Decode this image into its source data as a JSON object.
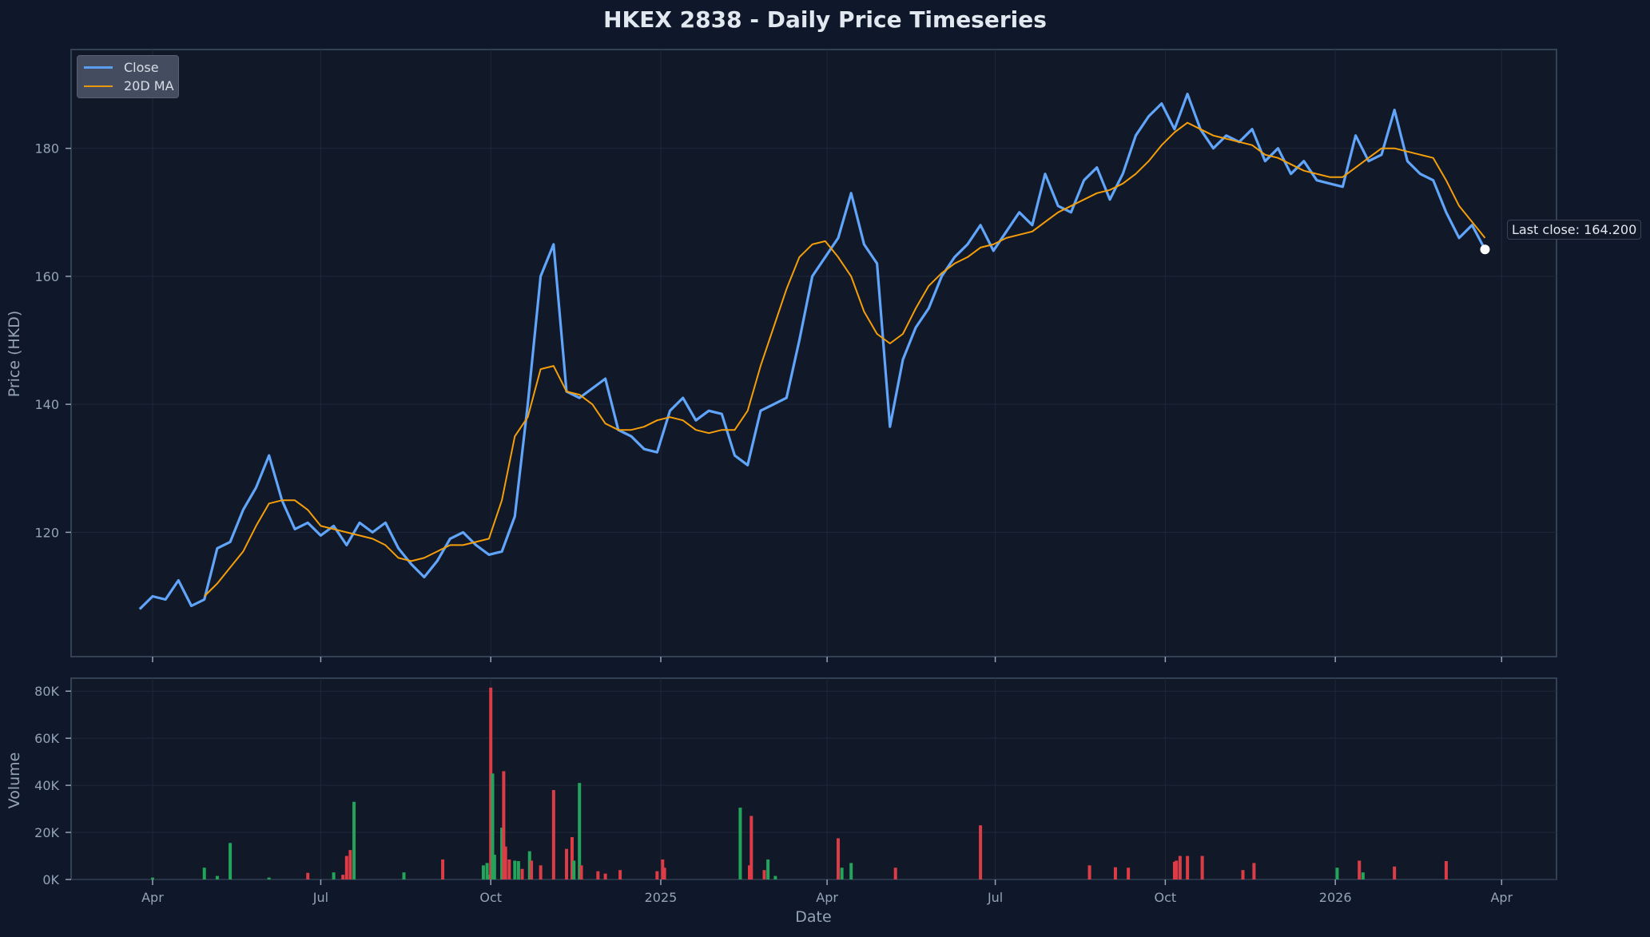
{
  "title": "HKEX 2838 - Daily Price Timeseries",
  "colors": {
    "background": "#0f172a",
    "plot_bg": "#111827",
    "close": "#60a5fa",
    "ma": "#f59e0b",
    "vol_up": "#22a55a",
    "vol_down": "#dc3c46",
    "grid": "#1e293b",
    "spine": "#334155",
    "text": "#94a3b8"
  },
  "legend": {
    "close_label": "Close",
    "ma_label": "20D MA"
  },
  "annotation": {
    "label": "Last close: 164.200"
  },
  "price_axis": {
    "label": "Price (HKD)",
    "ticks": [
      "120",
      "140",
      "160",
      "180"
    ]
  },
  "volume_axis": {
    "label": "Volume",
    "ticks": [
      "0K",
      "20K",
      "40K",
      "60K",
      "80K"
    ]
  },
  "x_axis": {
    "label": "Date",
    "ticks": [
      "Apr",
      "Jul",
      "Oct",
      "2025",
      "Apr",
      "Jul",
      "Oct",
      "2026",
      "Apr"
    ]
  },
  "chart_data": [
    {
      "type": "line",
      "title": "HKEX 2838 - Daily Price Timeseries",
      "xlabel": "Date",
      "ylabel": "Price (HKD)",
      "ylim": [
        100.6,
        195.4
      ],
      "grid": true,
      "legend_position": "upper left",
      "x_ticks": [
        "Apr 2024",
        "Jul 2024",
        "Oct 2024",
        "2025",
        "Apr 2025",
        "Jul 2025",
        "Oct 2025",
        "2026",
        "Apr 2026"
      ],
      "x": [
        "2024-03-25",
        "2024-04-01",
        "2024-04-08",
        "2024-04-15",
        "2024-04-22",
        "2024-04-29",
        "2024-05-06",
        "2024-05-13",
        "2024-05-20",
        "2024-05-27",
        "2024-06-03",
        "2024-06-10",
        "2024-06-17",
        "2024-06-24",
        "2024-07-01",
        "2024-07-08",
        "2024-07-15",
        "2024-07-22",
        "2024-07-29",
        "2024-08-05",
        "2024-08-12",
        "2024-08-19",
        "2024-08-26",
        "2024-09-02",
        "2024-09-09",
        "2024-09-16",
        "2024-09-23",
        "2024-09-30",
        "2024-10-07",
        "2024-10-14",
        "2024-10-21",
        "2024-10-28",
        "2024-11-04",
        "2024-11-11",
        "2024-11-18",
        "2024-11-25",
        "2024-12-02",
        "2024-12-09",
        "2024-12-16",
        "2024-12-23",
        "2024-12-30",
        "2025-01-06",
        "2025-01-13",
        "2025-01-20",
        "2025-01-27",
        "2025-02-03",
        "2025-02-10",
        "2025-02-17",
        "2025-02-24",
        "2025-03-03",
        "2025-03-10",
        "2025-03-17",
        "2025-03-24",
        "2025-03-31",
        "2025-04-07",
        "2025-04-14",
        "2025-04-21",
        "2025-04-28",
        "2025-05-05",
        "2025-05-12",
        "2025-05-19",
        "2025-05-26",
        "2025-06-02",
        "2025-06-09",
        "2025-06-16",
        "2025-06-23",
        "2025-06-30",
        "2025-07-07",
        "2025-07-14",
        "2025-07-21",
        "2025-07-28",
        "2025-08-04",
        "2025-08-11",
        "2025-08-18",
        "2025-08-25",
        "2025-09-01",
        "2025-09-08",
        "2025-09-15",
        "2025-09-22",
        "2025-09-29",
        "2025-10-06",
        "2025-10-13",
        "2025-10-20",
        "2025-10-27",
        "2025-11-03",
        "2025-11-10",
        "2025-11-17",
        "2025-11-24",
        "2025-12-01",
        "2025-12-08",
        "2025-12-15",
        "2025-12-22",
        "2025-12-29",
        "2026-01-05",
        "2026-01-12",
        "2026-01-19",
        "2026-01-26",
        "2026-02-02",
        "2026-02-09",
        "2026-02-16",
        "2026-02-23",
        "2026-03-02",
        "2026-03-09",
        "2026-03-16",
        "2026-03-23"
      ],
      "series": [
        {
          "name": "Close",
          "values": [
            108.0,
            110.0,
            109.5,
            112.5,
            108.5,
            109.5,
            117.5,
            118.5,
            123.5,
            127.0,
            132.0,
            125.0,
            120.5,
            121.5,
            119.5,
            121.0,
            118.0,
            121.5,
            120.0,
            121.5,
            117.5,
            115.0,
            113.0,
            115.5,
            119.0,
            120.0,
            118.0,
            116.5,
            117.0,
            122.5,
            140.0,
            160.0,
            165.0,
            142.0,
            141.0,
            142.5,
            144.0,
            136.0,
            135.0,
            133.0,
            132.5,
            139.0,
            141.0,
            137.5,
            139.0,
            138.5,
            132.0,
            130.5,
            139.0,
            140.0,
            141.0,
            150.0,
            160.0,
            163.0,
            166.0,
            173.0,
            165.0,
            162.0,
            136.5,
            147.0,
            152.0,
            155.0,
            160.0,
            163.0,
            165.0,
            168.0,
            164.0,
            167.0,
            170.0,
            168.0,
            176.0,
            171.0,
            170.0,
            175.0,
            177.0,
            172.0,
            176.0,
            182.0,
            185.0,
            187.0,
            183.0,
            188.5,
            183.0,
            180.0,
            182.0,
            181.0,
            183.0,
            178.0,
            180.0,
            176.0,
            178.0,
            175.0,
            174.5,
            174.0,
            182.0,
            178.0,
            179.0,
            186.0,
            178.0,
            176.0,
            175.0,
            170.0,
            166.0,
            168.0,
            164.2
          ]
        },
        {
          "name": "20D MA",
          "values": [
            null,
            null,
            null,
            null,
            null,
            110.0,
            112.0,
            114.5,
            117.0,
            121.0,
            124.5,
            125.0,
            125.0,
            123.5,
            121.0,
            120.5,
            120.0,
            119.5,
            119.0,
            118.0,
            116.0,
            115.5,
            116.0,
            117.0,
            118.0,
            118.0,
            118.5,
            119.0,
            125.0,
            135.0,
            138.0,
            145.5,
            146.0,
            142.0,
            141.5,
            140.0,
            137.0,
            136.0,
            136.0,
            136.5,
            137.5,
            138.0,
            137.5,
            136.0,
            135.5,
            136.0,
            136.0,
            139.0,
            146.0,
            152.0,
            158.0,
            163.0,
            165.0,
            165.5,
            163.0,
            160.0,
            154.5,
            151.0,
            149.5,
            151.0,
            155.0,
            158.5,
            160.5,
            162.0,
            163.0,
            164.5,
            165.0,
            166.0,
            166.5,
            167.0,
            168.5,
            170.0,
            171.0,
            172.0,
            173.0,
            173.5,
            174.5,
            176.0,
            178.0,
            180.5,
            182.5,
            184.0,
            183.0,
            182.0,
            181.5,
            181.0,
            180.5,
            179.0,
            178.5,
            177.5,
            176.5,
            176.0,
            175.5,
            175.5,
            177.0,
            178.5,
            180.0,
            180.0,
            179.5,
            179.0,
            178.5,
            175.0,
            171.0,
            168.5,
            166.0
          ]
        }
      ],
      "annotations": [
        {
          "text": "Last close: 164.200",
          "x": "2026-03-23",
          "y": 164.2
        }
      ]
    },
    {
      "type": "bar",
      "title": "",
      "xlabel": "Date",
      "ylabel": "Volume",
      "ylim": [
        0,
        85000
      ],
      "grid": true,
      "x": [
        "2024-04-01",
        "2024-04-29",
        "2024-05-06",
        "2024-05-13",
        "2024-06-03",
        "2024-06-24",
        "2024-07-08",
        "2024-07-13",
        "2024-07-15",
        "2024-07-17",
        "2024-07-19",
        "2024-08-15",
        "2024-09-05",
        "2024-09-27",
        "2024-09-29",
        "2024-09-30",
        "2024-10-01",
        "2024-10-02",
        "2024-10-03",
        "2024-10-07",
        "2024-10-08",
        "2024-10-09",
        "2024-10-11",
        "2024-10-14",
        "2024-10-16",
        "2024-10-18",
        "2024-10-22",
        "2024-10-23",
        "2024-10-28",
        "2024-11-04",
        "2024-11-11",
        "2024-11-14",
        "2024-11-15",
        "2024-11-18",
        "2024-11-19",
        "2024-11-28",
        "2024-12-02",
        "2024-12-10",
        "2024-12-30",
        "2025-01-02",
        "2025-01-03",
        "2025-02-13",
        "2025-02-18",
        "2025-02-19",
        "2025-02-26",
        "2025-02-28",
        "2025-03-04",
        "2025-04-07",
        "2025-04-09",
        "2025-04-14",
        "2025-05-08",
        "2025-06-23",
        "2025-08-21",
        "2025-09-04",
        "2025-09-11",
        "2025-10-06",
        "2025-10-07",
        "2025-10-09",
        "2025-10-13",
        "2025-10-21",
        "2025-11-12",
        "2025-11-18",
        "2026-01-02",
        "2026-01-14",
        "2026-01-16",
        "2026-02-02",
        "2026-03-02"
      ],
      "values": [
        800,
        5000,
        1500,
        15500,
        800,
        2800,
        3000,
        2000,
        10000,
        12500,
        33000,
        3000,
        8500,
        6000,
        7000,
        2000,
        81500,
        45000,
        10500,
        22000,
        46000,
        14000,
        8500,
        8000,
        7800,
        4500,
        12000,
        8000,
        6000,
        38000,
        13000,
        18000,
        8000,
        41000,
        6000,
        3500,
        2500,
        4000,
        3500,
        8500,
        5000,
        30500,
        6000,
        27000,
        4000,
        8500,
        1500,
        17500,
        5000,
        7000,
        5000,
        23000,
        6000,
        5200,
        5000,
        7500,
        8000,
        10000,
        10000,
        10000,
        4000,
        7000,
        5000,
        8000,
        3000,
        5500,
        7800
      ],
      "colors": [
        "up",
        "up",
        "up",
        "up",
        "up",
        "down",
        "up",
        "down",
        "down",
        "down",
        "up",
        "up",
        "down",
        "up",
        "up",
        "up",
        "down",
        "up",
        "up",
        "up",
        "down",
        "down",
        "down",
        "up",
        "up",
        "down",
        "up",
        "down",
        "down",
        "down",
        "down",
        "down",
        "up",
        "up",
        "down",
        "down",
        "down",
        "down",
        "down",
        "down",
        "down",
        "up",
        "down",
        "down",
        "down",
        "up",
        "up",
        "down",
        "up",
        "up",
        "down",
        "down",
        "down",
        "down",
        "down",
        "down",
        "down",
        "down",
        "down",
        "down",
        "down",
        "down",
        "up",
        "down",
        "up",
        "down",
        "down"
      ]
    }
  ]
}
